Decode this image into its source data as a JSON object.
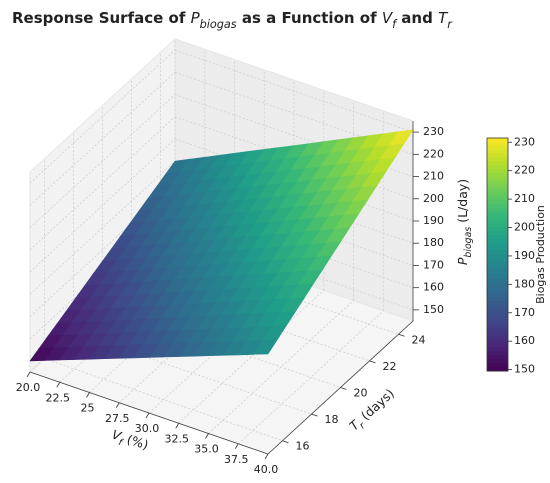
{
  "chart_data": {
    "type": "surface",
    "title": [
      {
        "text": "Response Surface of "
      },
      {
        "text": "P",
        "italic": true
      },
      {
        "text": "biogas",
        "sub": true,
        "italic": true
      },
      {
        "text": " as a Function of "
      },
      {
        "text": "V",
        "italic": true
      },
      {
        "text": "f",
        "sub": true,
        "italic": true
      },
      {
        "text": " and "
      },
      {
        "text": "T",
        "italic": true
      },
      {
        "text": "r",
        "sub": true,
        "italic": true
      }
    ],
    "xlabel": [
      {
        "text": "V",
        "italic": true
      },
      {
        "text": "f",
        "sub": true,
        "italic": true
      },
      {
        "text": " (%)"
      }
    ],
    "ylabel": [
      {
        "text": "T",
        "italic": true
      },
      {
        "text": "r",
        "sub": true,
        "italic": true
      },
      {
        "text": " (days)"
      }
    ],
    "zlabel": [
      {
        "text": "P",
        "italic": true
      },
      {
        "text": "biogas",
        "sub": true,
        "italic": true
      },
      {
        "text": " (L/day)"
      }
    ],
    "x": [
      20,
      25,
      30,
      35,
      40
    ],
    "y": [
      15,
      17.5,
      20,
      22.5,
      25
    ],
    "z": [
      [
        150,
        160,
        170,
        180,
        190
      ],
      [
        157.5,
        168.2,
        178.9,
        189.6,
        200.3
      ],
      [
        165,
        176.4,
        187.8,
        199.1,
        210.5
      ],
      [
        172.5,
        184.6,
        196.6,
        208.7,
        220.8
      ],
      [
        180,
        192.8,
        205.5,
        218.3,
        231
      ]
    ],
    "xlim": [
      20,
      40
    ],
    "ylim": [
      15,
      25
    ],
    "zlim": [
      145,
      235
    ],
    "xticks": [
      {
        "value": 20,
        "label": "20.0"
      },
      22.5,
      25,
      27.5,
      {
        "value": 30,
        "label": "30.0"
      },
      32.5,
      {
        "value": 35,
        "label": "35.0"
      },
      37.5,
      {
        "value": 40,
        "label": "40.0"
      }
    ],
    "yticks": [
      16,
      18,
      20,
      22,
      24
    ],
    "zticks": [
      150,
      160,
      170,
      180,
      190,
      200,
      210,
      220,
      230
    ],
    "grid": true,
    "colormap": "viridis",
    "colorbar": {
      "label": "Biogas Production",
      "clim": [
        149.5,
        231.5
      ],
      "ticks": [
        150,
        160,
        170,
        180,
        190,
        200,
        210,
        220,
        230
      ]
    }
  }
}
